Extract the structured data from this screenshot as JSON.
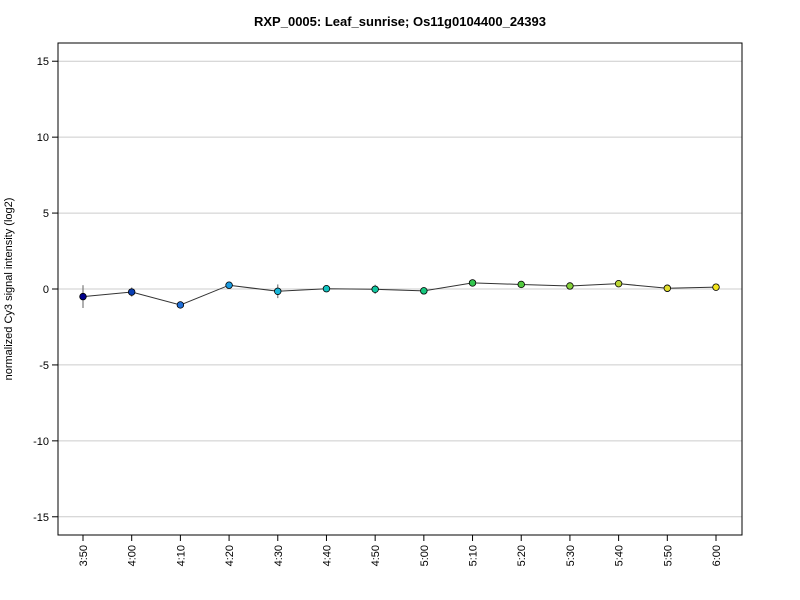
{
  "chart_data": {
    "type": "line",
    "title": "RXP_0005: Leaf_sunrise; Os11g0104400_24393",
    "xlabel": "",
    "ylabel": "normalized Cy3 signal intensity (log2)",
    "categories": [
      "3:50",
      "4:00",
      "4:10",
      "4:20",
      "4:30",
      "4:40",
      "4:50",
      "5:00",
      "5:10",
      "5:20",
      "5:30",
      "5:40",
      "5:50",
      "6:00"
    ],
    "values": [
      -0.5,
      -0.2,
      -1.05,
      0.25,
      -0.15,
      0.02,
      -0.02,
      -0.12,
      0.4,
      0.3,
      0.2,
      0.35,
      0.05,
      0.12
    ],
    "error": [
      0.75,
      0.3,
      0.05,
      0.1,
      0.45,
      0.12,
      0.3,
      0.2,
      0.12,
      0.05,
      0.1,
      0.12,
      0.05,
      0.05
    ],
    "point_colors": [
      "#00008B",
      "#0A3FB5",
      "#1F6FD8",
      "#1B9BE0",
      "#17B5D8",
      "#12C2C0",
      "#10C7A0",
      "#16C77E",
      "#33C64E",
      "#52C93F",
      "#86D13A",
      "#BBD633",
      "#E0DD2C",
      "#F2E41C"
    ],
    "ylim": [
      -16.2,
      16.2
    ],
    "yticks": [
      -15,
      -10,
      -5,
      0,
      5,
      10,
      15
    ],
    "grid": true
  }
}
